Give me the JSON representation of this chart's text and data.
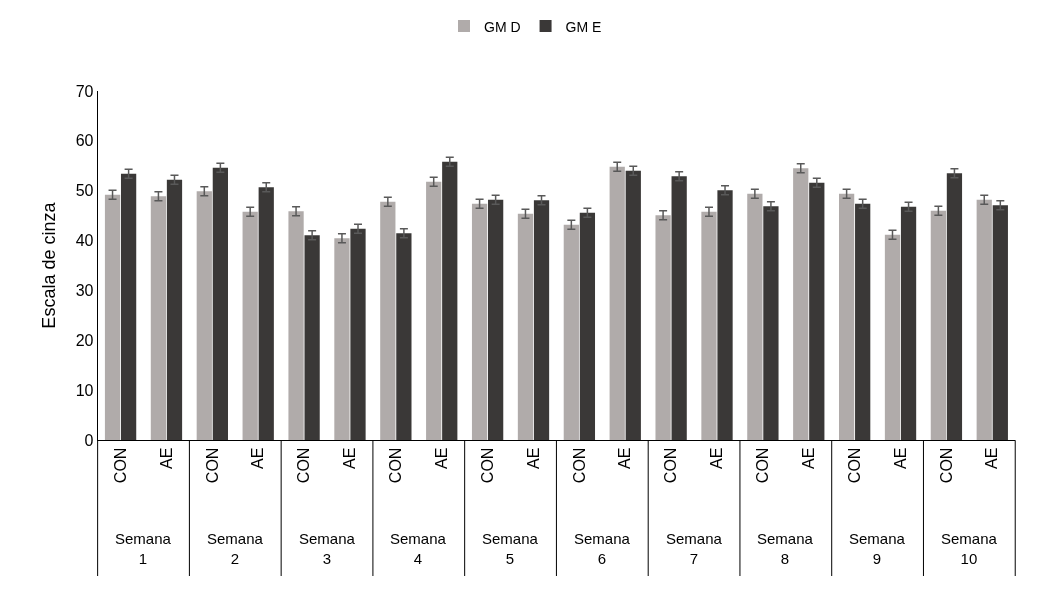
{
  "chart_data": {
    "type": "bar",
    "ylabel": "Escala de cinza",
    "categories": [
      "CON",
      "AE",
      "CON",
      "AE",
      "CON",
      "AE",
      "CON",
      "AE",
      "CON",
      "AE",
      "CON",
      "AE",
      "CON",
      "AE",
      "CON",
      "AE",
      "CON",
      "AE",
      "CON",
      "AE"
    ],
    "series": [
      {
        "name": "GM D",
        "color": "#b0abaa",
        "values": [
          49.2,
          48.9,
          49.9,
          45.8,
          45.9,
          40.5,
          47.8,
          51.8,
          47.4,
          45.4,
          43.2,
          54.8,
          45.1,
          45.8,
          49.4,
          54.5,
          49.4,
          41.2,
          46.0,
          48.2
        ],
        "errors": [
          0.9,
          0.9,
          0.9,
          0.9,
          0.9,
          0.9,
          0.9,
          0.9,
          0.9,
          0.9,
          0.9,
          0.9,
          0.9,
          0.9,
          0.9,
          0.9,
          0.9,
          0.9,
          0.9,
          0.9
        ]
      },
      {
        "name": "GM E",
        "color": "#3a3837",
        "values": [
          53.4,
          52.2,
          54.6,
          50.7,
          41.1,
          42.4,
          41.5,
          55.8,
          48.2,
          48.1,
          45.6,
          54.0,
          52.9,
          50.1,
          46.9,
          51.6,
          47.4,
          46.8,
          53.5,
          47.1
        ],
        "errors": [
          0.9,
          0.9,
          0.9,
          0.9,
          0.9,
          0.9,
          0.9,
          0.9,
          0.9,
          0.9,
          0.9,
          0.9,
          0.9,
          0.9,
          0.9,
          0.9,
          0.9,
          0.9,
          0.9,
          0.9
        ]
      }
    ],
    "annotations": [
      "Semana\n1",
      "Semana\n2",
      "Semana\n3",
      "Semana\n4",
      "Semana\n5",
      "Semana\n6",
      "Semana\n7",
      "Semana\n8",
      "Semana\n9",
      "Semana\n10"
    ],
    "ylim": [
      0,
      70
    ],
    "yticks": [
      0,
      10,
      20,
      30,
      40,
      50,
      60,
      70
    ],
    "legend": "top"
  }
}
